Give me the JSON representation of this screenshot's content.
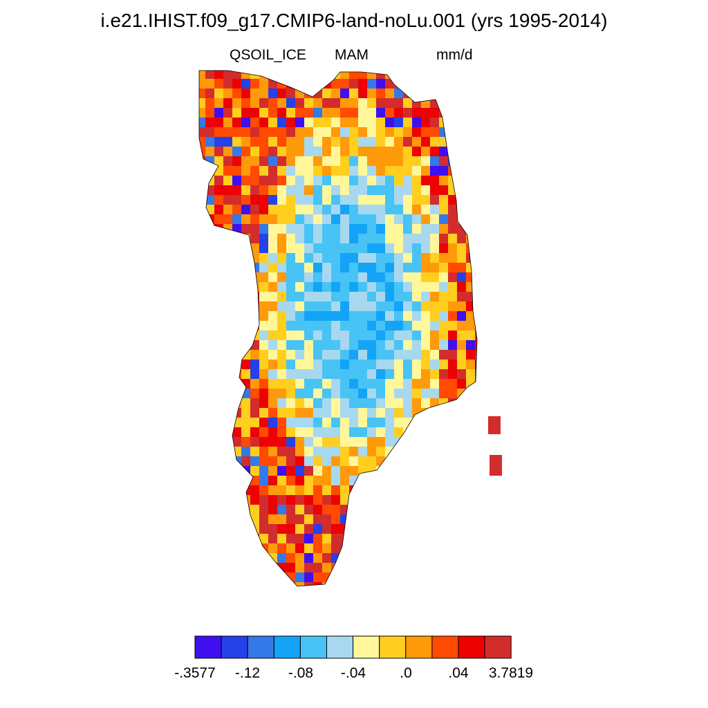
{
  "title": "i.e21.IHIST.f09_g17.CMIP6-land-noLu.001 (yrs 1995-2014)",
  "subtitle": {
    "left": "QSOIL_ICE",
    "center": "MAM",
    "right": "mm/d"
  },
  "colorbar": {
    "colors": [
      "#3f0ff0",
      "#2541e8",
      "#3379e8",
      "#13a4f7",
      "#47c3f5",
      "#a8d8ef",
      "#fff79a",
      "#ffce1f",
      "#ff9a0a",
      "#ff4a00",
      "#ec0203",
      "#d32c2d"
    ],
    "labels": [
      "-.3577",
      "-.12",
      "-.08",
      "-.04",
      ".0",
      ".04",
      "3.7819"
    ]
  }
}
